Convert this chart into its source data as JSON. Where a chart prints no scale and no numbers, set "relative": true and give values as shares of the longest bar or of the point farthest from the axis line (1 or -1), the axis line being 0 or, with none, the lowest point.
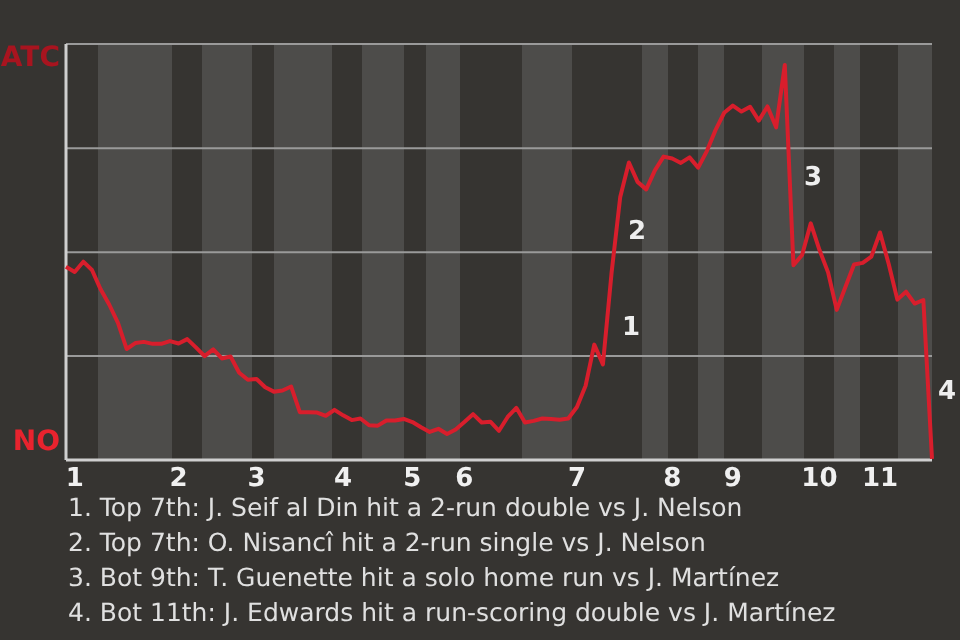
{
  "chart_data": {
    "type": "line",
    "relative": true,
    "categories": [
      null,
      "1",
      null,
      null,
      null,
      null,
      null,
      null,
      null,
      null,
      null,
      null,
      null,
      "2",
      null,
      null,
      null,
      null,
      null,
      null,
      null,
      null,
      "3",
      null,
      null,
      null,
      null,
      null,
      null,
      null,
      null,
      null,
      "4",
      null,
      null,
      null,
      null,
      null,
      null,
      null,
      "5",
      null,
      null,
      null,
      null,
      null,
      "6",
      null,
      null,
      null,
      null,
      null,
      null,
      null,
      null,
      null,
      null,
      null,
      null,
      "7",
      null,
      null,
      null,
      null,
      null,
      null,
      null,
      null,
      null,
      null,
      "8",
      null,
      null,
      null,
      null,
      null,
      null,
      "9",
      null,
      null,
      null,
      null,
      null,
      null,
      null,
      null,
      null,
      "10",
      null,
      null,
      null,
      null,
      null,
      null,
      "11",
      null,
      null,
      null,
      null,
      null,
      null
    ],
    "marker": "none",
    "line_style": "solid",
    "ref_lines": [
      {
        "axis": "y",
        "value": 0.263,
        "color": "#9a9a9a"
      },
      {
        "axis": "y",
        "value": 0.526,
        "color": "#9a9a9a"
      },
      {
        "axis": "y",
        "value": 0.789,
        "color": "#9a9a9a"
      },
      {
        "axis": "y",
        "value": 1.053,
        "color": "#9a9a9a"
      }
    ],
    "series": [
      {
        "color": "#d81e2c",
        "values": [
          0.489,
          0.476,
          0.502,
          0.481,
          0.432,
          0.393,
          0.347,
          0.281,
          0.296,
          0.299,
          0.294,
          0.294,
          0.301,
          0.295,
          0.306,
          0.285,
          0.263,
          0.28,
          0.257,
          0.262,
          0.221,
          0.203,
          0.205,
          0.184,
          0.173,
          0.176,
          0.186,
          0.121,
          0.121,
          0.12,
          0.112,
          0.127,
          0.113,
          0.101,
          0.105,
          0.088,
          0.087,
          0.1,
          0.1,
          0.104,
          0.096,
          0.083,
          0.071,
          0.079,
          0.066,
          0.077,
          0.096,
          0.116,
          0.095,
          0.097,
          0.074,
          0.109,
          0.132,
          0.095,
          0.099,
          0.105,
          0.104,
          0.102,
          0.105,
          0.134,
          0.188,
          0.292,
          0.242,
          0.474,
          0.666,
          0.753,
          0.704,
          0.685,
          0.733,
          0.768,
          0.763,
          0.752,
          0.766,
          0.74,
          0.782,
          0.835,
          0.879,
          0.897,
          0.882,
          0.894,
          0.859,
          0.895,
          0.842,
          1,
          0.493,
          0.519,
          0.599,
          0.532,
          0.475,
          0.38,
          0.438,
          0.495,
          0.499,
          0.515,
          0.576,
          0.496,
          0.406,
          0.426,
          0.396,
          0.405,
          0.003
        ]
      }
    ],
    "annotations": [
      "ATC",
      "NO",
      "1",
      "2",
      "3",
      "4",
      "1. Top 7th: J. Seif al Din hit a 2-run double vs J. Nelson",
      "2. Top 7th: O. Nisancî hit a 2-run single vs J. Nelson",
      "3. Bot 9th: T. Guenette hit a solo home run vs J. Martínez",
      "4. Bot 11th: J. Edwards hit a run-scoring double vs J. Martínez"
    ]
  }
}
